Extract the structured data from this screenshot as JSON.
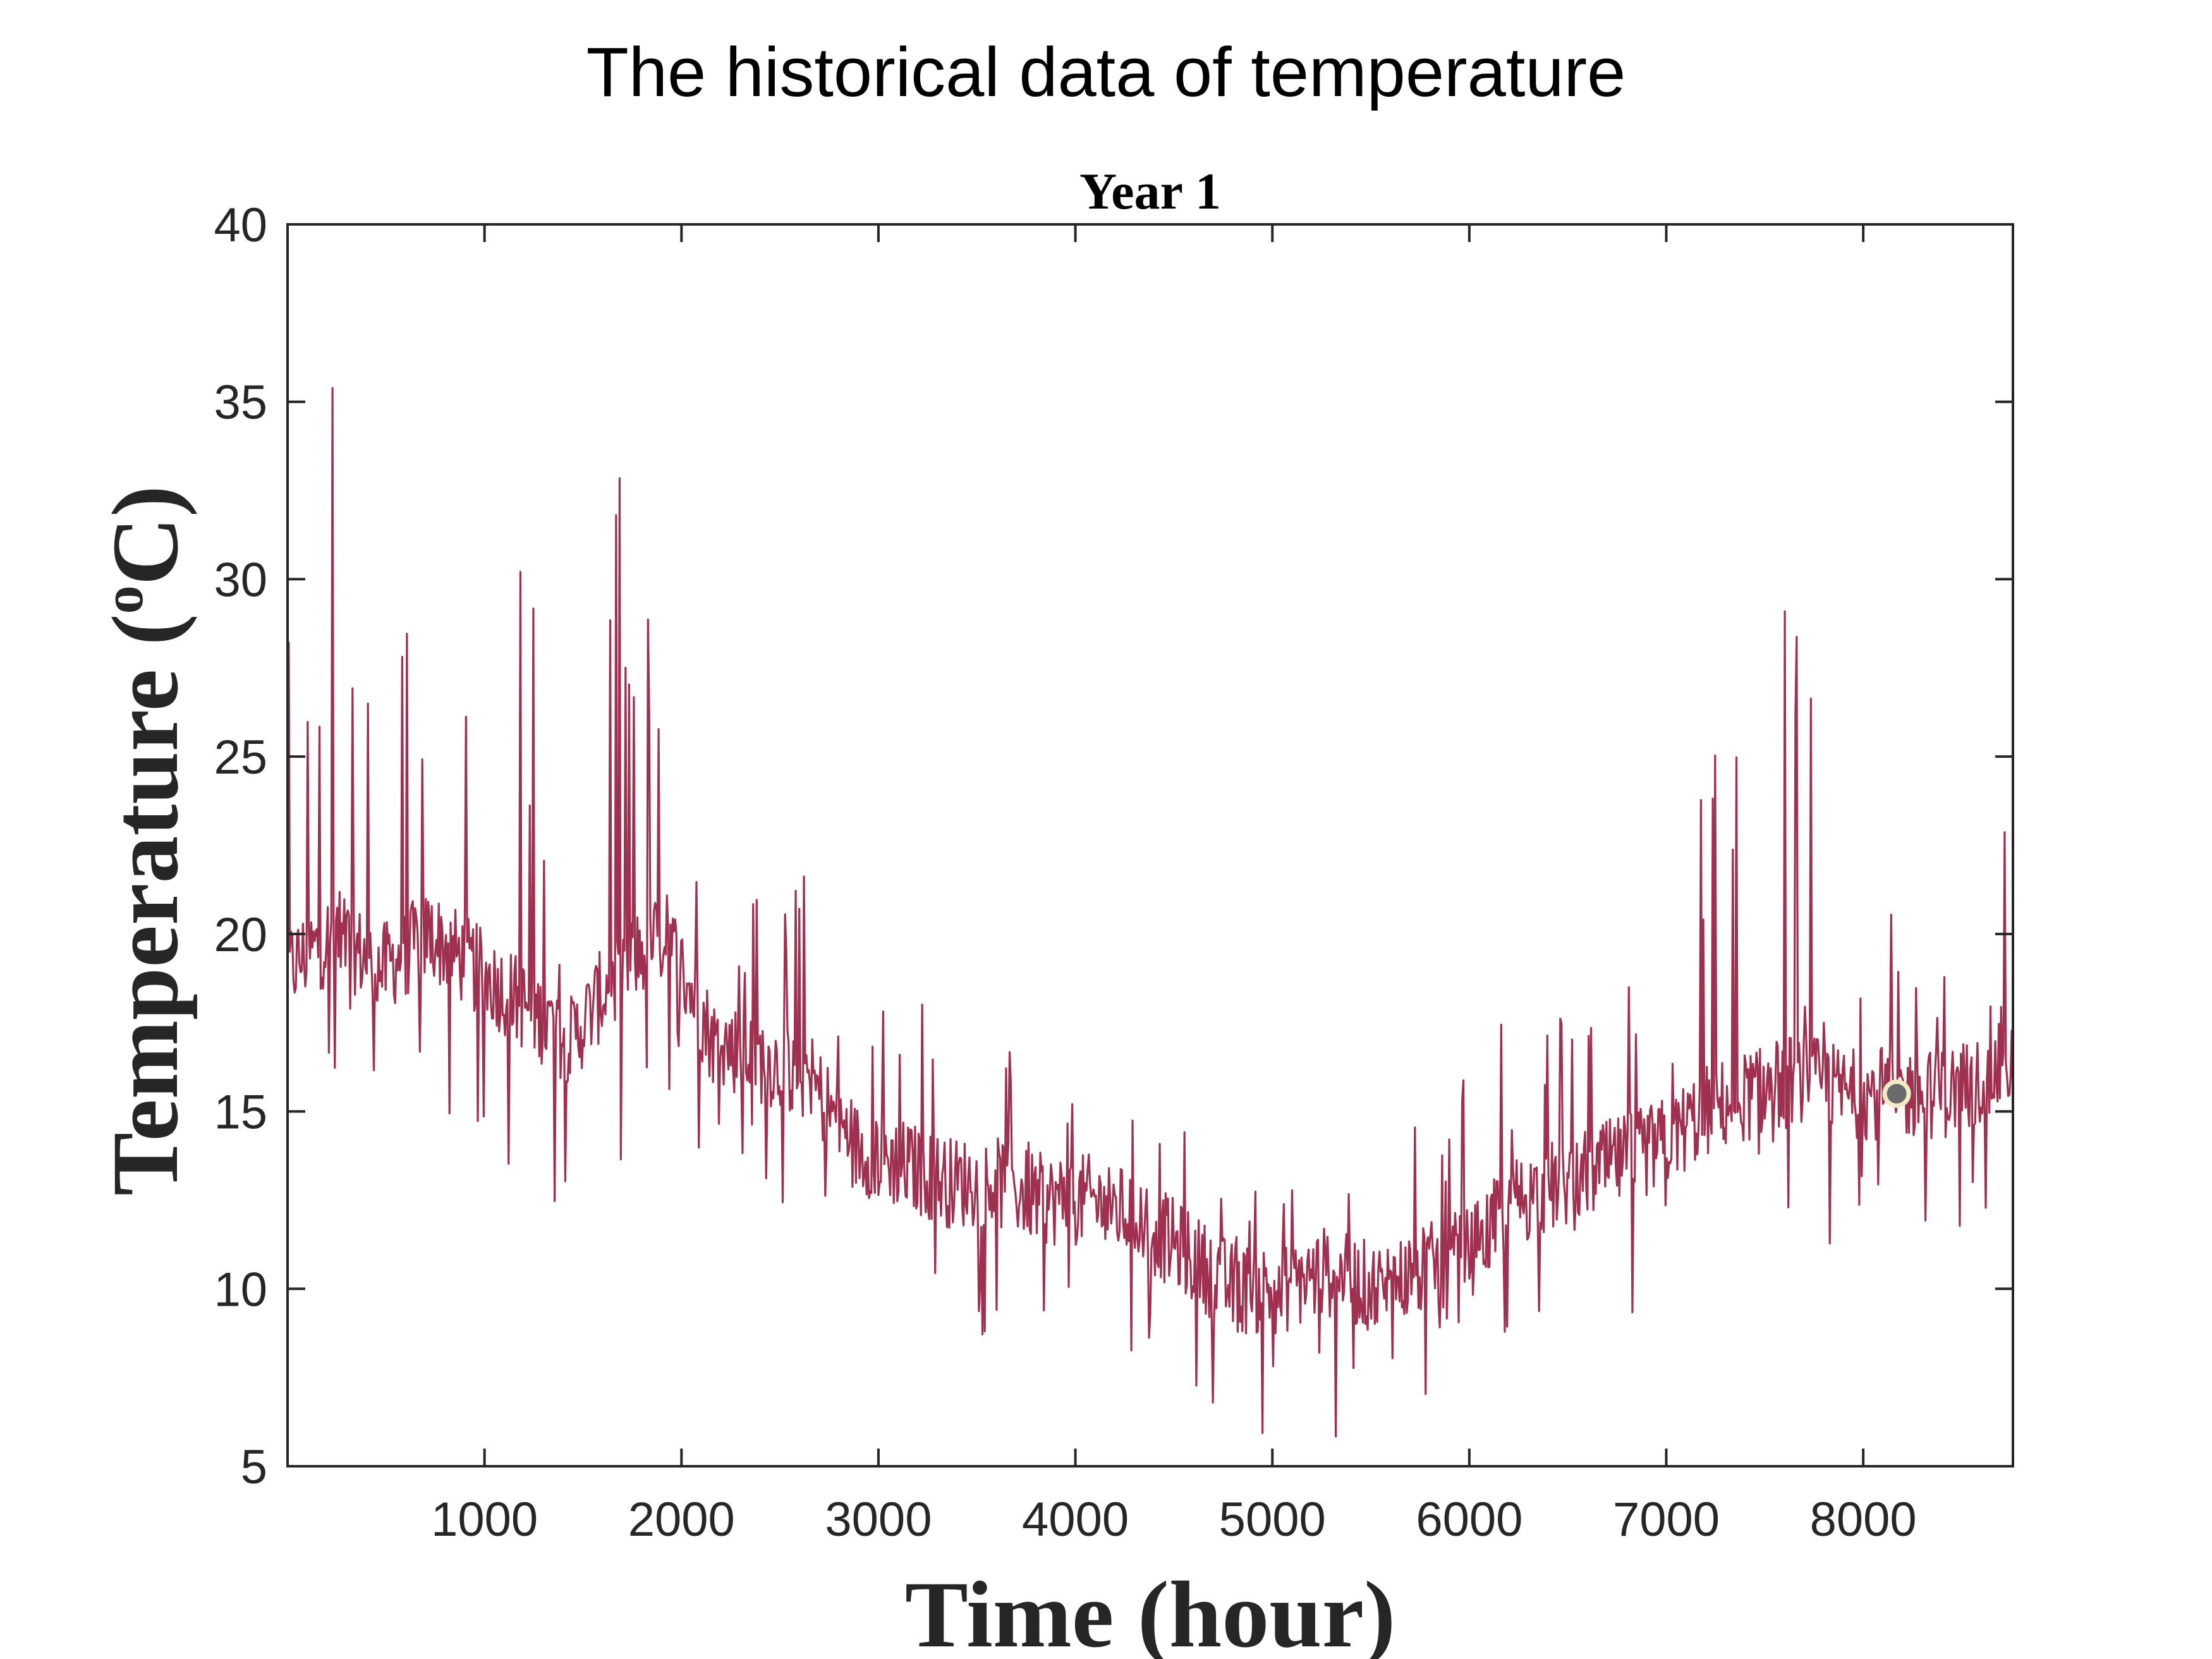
{
  "figure": {
    "suptitle": "The historical data of temperature"
  },
  "chart_data": {
    "type": "line",
    "title": "Year 1",
    "xlabel": "Time (hour)",
    "ylabel": "Temperature (oC)",
    "ylabel_parts": {
      "prefix": "Temperature (",
      "superscript": "o",
      "suffix": "C)"
    },
    "xlim": [
      0,
      8760
    ],
    "ylim": [
      5,
      40
    ],
    "xticks": [
      1000,
      2000,
      3000,
      4000,
      5000,
      6000,
      7000,
      8000
    ],
    "yticks": [
      5,
      10,
      15,
      20,
      25,
      30,
      35,
      40
    ],
    "grid": false,
    "legend": "none",
    "colors": {
      "series": "#A0304F",
      "axes": "#262626",
      "marker_fill": "#6B6B6B",
      "marker_edge": "#F2EBC8"
    },
    "series": [
      {
        "x": [
          0,
          240,
          480,
          720,
          960,
          1200,
          1440,
          1680,
          1920,
          2160,
          2400,
          2640,
          2880,
          3120,
          3360,
          3600,
          3840,
          4080,
          4320,
          4560,
          4800,
          5040,
          5280,
          5520,
          5760,
          6000,
          6240,
          6480,
          6720,
          6960,
          7200,
          7440,
          7680,
          7920,
          8160,
          8400,
          8640,
          8760
        ],
        "values": [
          19,
          20,
          19,
          20,
          19,
          18,
          17,
          19,
          20,
          17,
          16.5,
          16,
          14,
          13.5,
          13,
          13,
          12.5,
          12.5,
          12,
          11,
          10,
          10,
          10.5,
          10,
          10.5,
          11,
          12.5,
          13,
          13.5,
          14,
          15,
          15.5,
          16,
          15.5,
          15.5,
          15.5,
          16,
          16.5
        ],
        "range_low": [
          13.5,
          13.8,
          14.0,
          15.0,
          14.2,
          12.0,
          12.0,
          13.0,
          15.5,
          12.5,
          12.0,
          11.5,
          9.3,
          8.5,
          7.6,
          8.5,
          8.0,
          9.0,
          7.5,
          6.8,
          5.5,
          6.2,
          5.7,
          6.5,
          6.7,
          7.5,
          7.5,
          8.0,
          8.5,
          8.5,
          7.6,
          9.5,
          10.0,
          9.6,
          10.7,
          11.0,
          11.5,
          13.0
        ],
        "range_high": [
          33.2,
          35.5,
          27.8,
          30.4,
          27.8,
          30.4,
          29.6,
          34.3,
          25.6,
          24.3,
          21.9,
          22.2,
          17.5,
          19.2,
          17.6,
          17.0,
          17.0,
          16.0,
          15.2,
          15.6,
          14.5,
          13.3,
          12.8,
          13.5,
          16.0,
          17.8,
          19.5,
          19.6,
          22.8,
          25.6,
          25.6,
          27.0,
          30.1,
          26.1,
          22.5,
          22.0,
          26.3,
          24.4
        ],
        "peaks": [
          {
            "x": 230,
            "y": 35.5
          },
          {
            "x": 1830,
            "y": 34.3
          },
          {
            "x": 1180,
            "y": 30.4
          },
          {
            "x": 7600,
            "y": 30.1
          },
          {
            "x": 4950,
            "y": 5.5
          },
          {
            "x": 5320,
            "y": 5.7
          }
        ]
      }
    ],
    "highlight_point": {
      "x": 8170,
      "y": 15.5
    }
  }
}
